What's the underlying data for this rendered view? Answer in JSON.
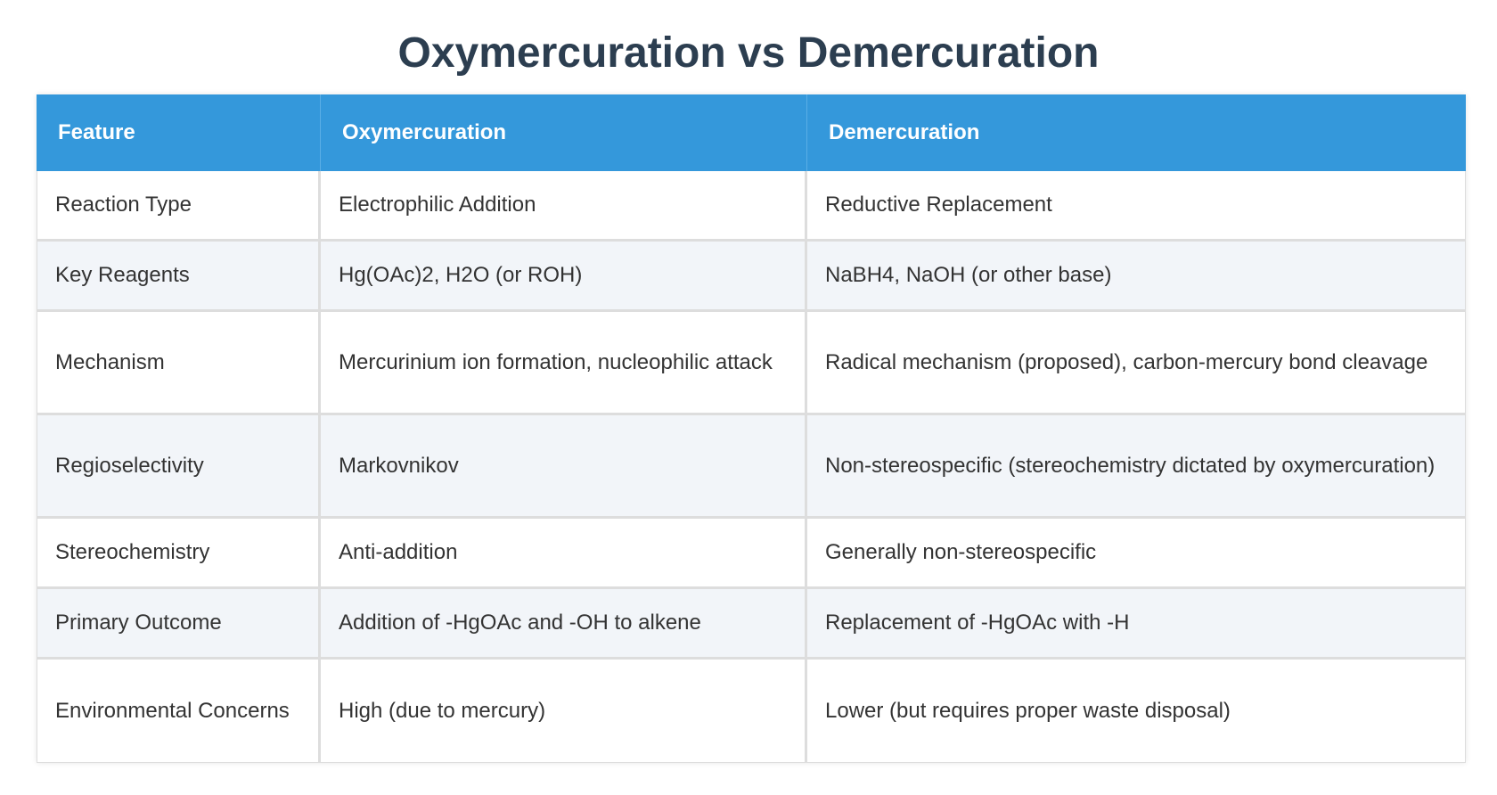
{
  "title": "Oxymercuration vs Demercuration",
  "colors": {
    "header_bg": "#3498db",
    "title_text": "#2c3e50",
    "row_alt_bg": "#f2f5f9"
  },
  "table": {
    "headers": [
      "Feature",
      "Oxymercuration",
      "Demercuration"
    ],
    "rows": [
      [
        "Reaction Type",
        "Electrophilic Addition",
        "Reductive Replacement"
      ],
      [
        "Key Reagents",
        "Hg(OAc)2, H2O (or ROH)",
        "NaBH4, NaOH (or other base)"
      ],
      [
        "Mechanism",
        "Mercurinium ion formation, nucleophilic attack",
        "Radical mechanism (proposed), carbon-mercury bond cleavage"
      ],
      [
        "Regioselectivity",
        "Markovnikov",
        "Non-stereospecific (stereochemistry dictated by oxymercuration)"
      ],
      [
        "Stereochemistry",
        "Anti-addition",
        "Generally non-stereospecific"
      ],
      [
        "Primary Outcome",
        "Addition of -HgOAc and -OH to alkene",
        "Replacement of -HgOAc with -H"
      ],
      [
        "Environmental Concerns",
        "High (due to mercury)",
        "Lower (but requires proper waste disposal)"
      ]
    ]
  }
}
